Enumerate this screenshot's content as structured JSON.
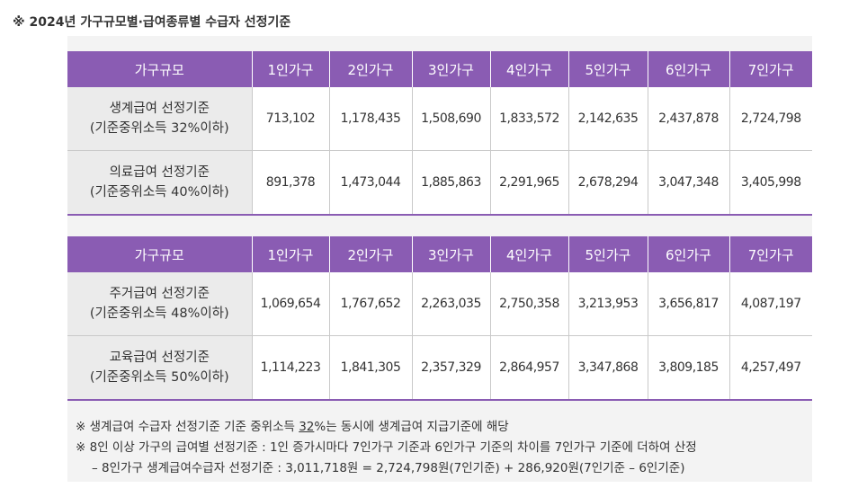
{
  "heading": "※ 2024년 가구규모별·급여종류별 수급자 선정기준",
  "tables": [
    {
      "headers": [
        "가구규모",
        "1인가구",
        "2인가구",
        "3인가구",
        "4인가구",
        "5인가구",
        "6인가구",
        "7인가구"
      ],
      "rows": [
        {
          "label_line1": "생계급여  선정기준",
          "label_line2": "(기준중위소득 32%이하)",
          "values": [
            "713,102",
            "1,178,435",
            "1,508,690",
            "1,833,572",
            "2,142,635",
            "2,437,878",
            "2,724,798"
          ]
        },
        {
          "label_line1": "의료급여  선정기준",
          "label_line2": "(기준중위소득 40%이하)",
          "values": [
            "891,378",
            "1,473,044",
            "1,885,863",
            "2,291,965",
            "2,678,294",
            "3,047,348",
            "3,405,998"
          ]
        }
      ]
    },
    {
      "headers": [
        "가구규모",
        "1인가구",
        "2인가구",
        "3인가구",
        "4인가구",
        "5인가구",
        "6인가구",
        "7인가구"
      ],
      "rows": [
        {
          "label_line1": "주거급여  선정기준",
          "label_line2": "(기준중위소득 48%이하)",
          "values": [
            "1,069,654",
            "1,767,652",
            "2,263,035",
            "2,750,358",
            "3,213,953",
            "3,656,817",
            "4,087,197"
          ]
        },
        {
          "label_line1": "교육급여  선정기준",
          "label_line2": "(기준중위소득 50%이하)",
          "values": [
            "1,114,223",
            "1,841,305",
            "2,357,329",
            "2,864,957",
            "3,347,868",
            "3,809,185",
            "4,257,497"
          ]
        }
      ]
    }
  ],
  "notes": {
    "line1_pre": "※  생계급여  수급자  선정기준  기준  중위소득 ",
    "line1_underlined": "32",
    "line1_post": "%는 동시에 생계급여 지급기준에 해당",
    "line2": "※  8인 이상 가구의 급여별 선정기준 : 1인 증가시마다 7인가구 기준과 6인가구 기준의 차이를 7인가구 기준에 더하여 산정",
    "line3": "–  8인가구 생계급여수급자 선정기준 : 3,011,718원 = 2,724,798원(7인기준) + 286,920원(7인기준 – 6인기준)"
  },
  "colors": {
    "header_purple": "#8a5cb3",
    "row_head_gray": "#ebebeb",
    "panel_gray": "#f3f3f3"
  }
}
